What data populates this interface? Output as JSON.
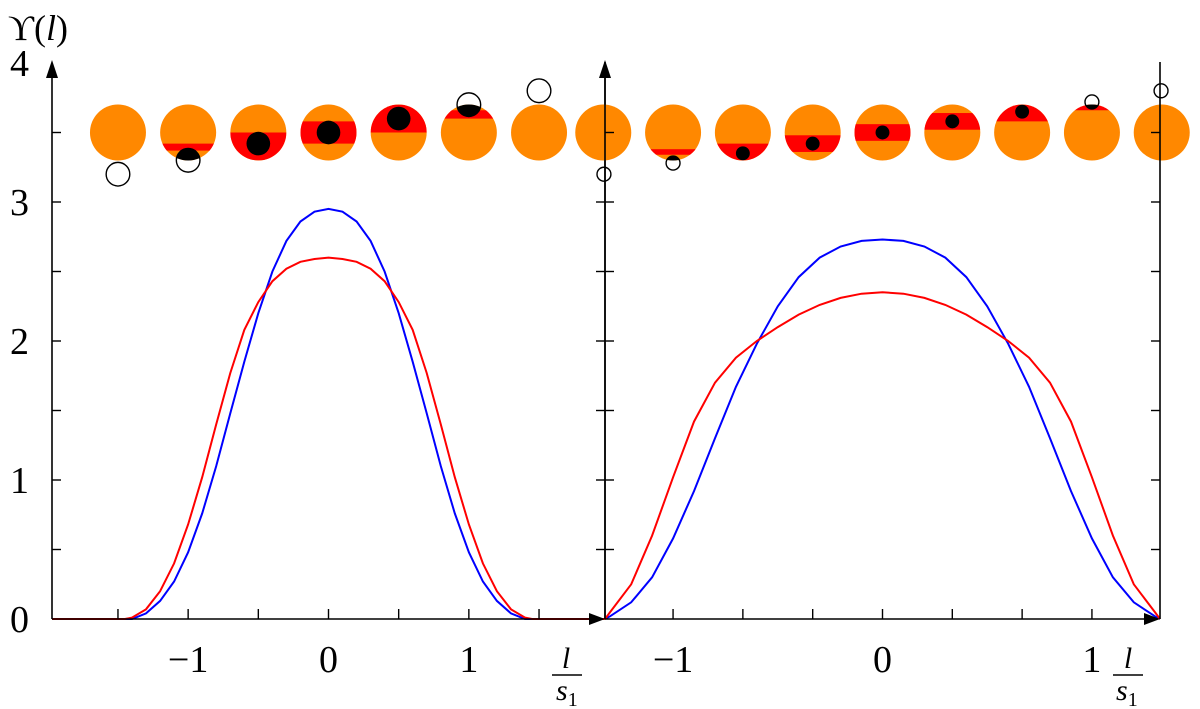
{
  "chart_data": {
    "type": "line",
    "ylabel": {
      "symbol": "ϒ(",
      "var": "l",
      "close": ")"
    },
    "xlabel": {
      "num": "l",
      "den": "s",
      "sub": "1"
    },
    "ylim": [
      0,
      4
    ],
    "yticks": [
      0,
      1,
      2,
      3,
      4
    ],
    "grid": false,
    "colors": {
      "blue": "#0000ff",
      "red": "#ff0000",
      "disk": "#ff8800",
      "band": "#ff0000",
      "planet": "#000000"
    },
    "panels": [
      {
        "xlim": [
          -1.97,
          1.97
        ],
        "xticks": [
          -1.5,
          -1,
          -0.5,
          0,
          0.5,
          1,
          1.5
        ],
        "xtick_labels": [
          {
            "x": -1,
            "label": "−1"
          },
          {
            "x": 0,
            "label": "0"
          },
          {
            "x": 1,
            "label": "1"
          }
        ],
        "series": [
          {
            "color": "blue",
            "x": [
              -1.97,
              -1.4,
              -1.3,
              -1.2,
              -1.1,
              -1.0,
              -0.9,
              -0.8,
              -0.7,
              -0.6,
              -0.5,
              -0.4,
              -0.3,
              -0.2,
              -0.1,
              0,
              0.1,
              0.2,
              0.3,
              0.4,
              0.5,
              0.6,
              0.7,
              0.8,
              0.9,
              1.0,
              1.1,
              1.2,
              1.3,
              1.4,
              1.97
            ],
            "y": [
              0,
              0,
              0.04,
              0.13,
              0.27,
              0.48,
              0.76,
              1.1,
              1.48,
              1.85,
              2.2,
              2.5,
              2.72,
              2.86,
              2.93,
              2.95,
              2.93,
              2.86,
              2.72,
              2.5,
              2.2,
              1.85,
              1.48,
              1.1,
              0.76,
              0.48,
              0.27,
              0.13,
              0.04,
              0,
              0
            ]
          },
          {
            "color": "red",
            "x": [
              -1.97,
              -1.45,
              -1.4,
              -1.3,
              -1.2,
              -1.1,
              -1.0,
              -0.9,
              -0.8,
              -0.7,
              -0.6,
              -0.5,
              -0.4,
              -0.3,
              -0.2,
              -0.1,
              0,
              0.1,
              0.2,
              0.3,
              0.4,
              0.5,
              0.6,
              0.7,
              0.8,
              0.9,
              1.0,
              1.1,
              1.2,
              1.3,
              1.4,
              1.45,
              1.97
            ],
            "y": [
              0,
              0,
              0.01,
              0.07,
              0.2,
              0.4,
              0.68,
              1.02,
              1.4,
              1.77,
              2.08,
              2.28,
              2.43,
              2.52,
              2.57,
              2.59,
              2.6,
              2.59,
              2.57,
              2.52,
              2.43,
              2.28,
              2.08,
              1.77,
              1.4,
              1.02,
              0.68,
              0.4,
              0.2,
              0.07,
              0.01,
              0,
              0
            ]
          }
        ],
        "transits": [
          {
            "x": -1.5,
            "y": 3.5,
            "band": null,
            "planet": {
              "x": -1.5,
              "y": 3.2,
              "r": 0.085,
              "open": true
            }
          },
          {
            "x": -1.0,
            "y": 3.5,
            "band": [
              3.37,
              3.42
            ],
            "planet": {
              "x": -1.0,
              "y": 3.3,
              "r": 0.085,
              "open": true
            }
          },
          {
            "x": -0.5,
            "y": 3.5,
            "band": [
              3.3,
              3.5
            ],
            "planet": {
              "x": -0.5,
              "y": 3.42,
              "r": 0.085,
              "open": false
            }
          },
          {
            "x": 0.0,
            "y": 3.5,
            "band": [
              3.42,
              3.58
            ],
            "planet": {
              "x": 0.0,
              "y": 3.5,
              "r": 0.085,
              "open": false
            }
          },
          {
            "x": 0.5,
            "y": 3.5,
            "band": [
              3.5,
              3.7
            ],
            "planet": {
              "x": 0.5,
              "y": 3.6,
              "r": 0.085,
              "open": false
            }
          },
          {
            "x": 1.0,
            "y": 3.5,
            "band": [
              3.6,
              3.66
            ],
            "planet": {
              "x": 1.0,
              "y": 3.7,
              "r": 0.085,
              "open": true
            }
          },
          {
            "x": 1.5,
            "y": 3.5,
            "band": null,
            "planet": {
              "x": 1.5,
              "y": 3.8,
              "r": 0.085,
              "open": true
            }
          }
        ]
      },
      {
        "xlim": [
          -1.325,
          1.325
        ],
        "xticks": [
          -1,
          -0.6667,
          -0.3333,
          0,
          0.3333,
          0.6667,
          1
        ],
        "xtick_labels": [
          {
            "x": -1,
            "label": "−1"
          },
          {
            "x": 0,
            "label": "0"
          },
          {
            "x": 1,
            "label": "1"
          }
        ],
        "series": [
          {
            "color": "blue",
            "x": [
              -1.325,
              -1.3,
              -1.2,
              -1.1,
              -1.0,
              -0.9,
              -0.8,
              -0.7,
              -0.6,
              -0.5,
              -0.4,
              -0.3,
              -0.2,
              -0.1,
              0,
              0.1,
              0.2,
              0.3,
              0.4,
              0.5,
              0.6,
              0.7,
              0.8,
              0.9,
              1.0,
              1.1,
              1.2,
              1.3,
              1.325
            ],
            "y": [
              0,
              0.02,
              0.12,
              0.3,
              0.58,
              0.92,
              1.3,
              1.67,
              1.98,
              2.25,
              2.46,
              2.6,
              2.68,
              2.72,
              2.73,
              2.72,
              2.68,
              2.6,
              2.46,
              2.25,
              1.98,
              1.67,
              1.3,
              0.92,
              0.58,
              0.3,
              0.12,
              0.02,
              0
            ]
          },
          {
            "color": "red",
            "x": [
              -1.325,
              -1.3,
              -1.2,
              -1.1,
              -1.0,
              -0.9,
              -0.8,
              -0.7,
              -0.6,
              -0.5,
              -0.4,
              -0.3,
              -0.2,
              -0.1,
              0,
              0.1,
              0.2,
              0.3,
              0.4,
              0.5,
              0.6,
              0.7,
              0.8,
              0.9,
              1.0,
              1.1,
              1.2,
              1.3,
              1.325
            ],
            "y": [
              0,
              0.05,
              0.25,
              0.6,
              1.02,
              1.42,
              1.7,
              1.88,
              2.0,
              2.1,
              2.19,
              2.26,
              2.31,
              2.34,
              2.35,
              2.34,
              2.31,
              2.26,
              2.19,
              2.1,
              2.0,
              1.88,
              1.7,
              1.42,
              1.02,
              0.6,
              0.25,
              0.05,
              0
            ]
          }
        ],
        "transits": [
          {
            "x": -1.3333,
            "y": 3.5,
            "band": null,
            "planet": {
              "x": -1.33,
              "y": 3.2,
              "r": 0.05,
              "open": true
            }
          },
          {
            "x": -1.0,
            "y": 3.5,
            "band": [
              3.34,
              3.38
            ],
            "planet": {
              "x": -1.0,
              "y": 3.28,
              "r": 0.05,
              "open": true
            }
          },
          {
            "x": -0.6667,
            "y": 3.5,
            "band": [
              3.3,
              3.42
            ],
            "planet": {
              "x": -0.6667,
              "y": 3.35,
              "r": 0.05,
              "open": false
            }
          },
          {
            "x": -0.3333,
            "y": 3.5,
            "band": [
              3.36,
              3.48
            ],
            "planet": {
              "x": -0.3333,
              "y": 3.42,
              "r": 0.05,
              "open": false
            }
          },
          {
            "x": 0.0,
            "y": 3.5,
            "band": [
              3.44,
              3.56
            ],
            "planet": {
              "x": 0.0,
              "y": 3.5,
              "r": 0.05,
              "open": false
            }
          },
          {
            "x": 0.3333,
            "y": 3.5,
            "band": [
              3.52,
              3.64
            ],
            "planet": {
              "x": 0.3333,
              "y": 3.58,
              "r": 0.05,
              "open": false
            }
          },
          {
            "x": 0.6667,
            "y": 3.5,
            "band": [
              3.58,
              3.7
            ],
            "planet": {
              "x": 0.6667,
              "y": 3.65,
              "r": 0.05,
              "open": false
            }
          },
          {
            "x": 1.0,
            "y": 3.5,
            "band": [
              3.66,
              3.7
            ],
            "planet": {
              "x": 1.0,
              "y": 3.72,
              "r": 0.05,
              "open": true
            }
          },
          {
            "x": 1.3333,
            "y": 3.5,
            "band": null,
            "planet": {
              "x": 1.33,
              "y": 3.8,
              "r": 0.05,
              "open": true
            }
          }
        ]
      }
    ]
  }
}
